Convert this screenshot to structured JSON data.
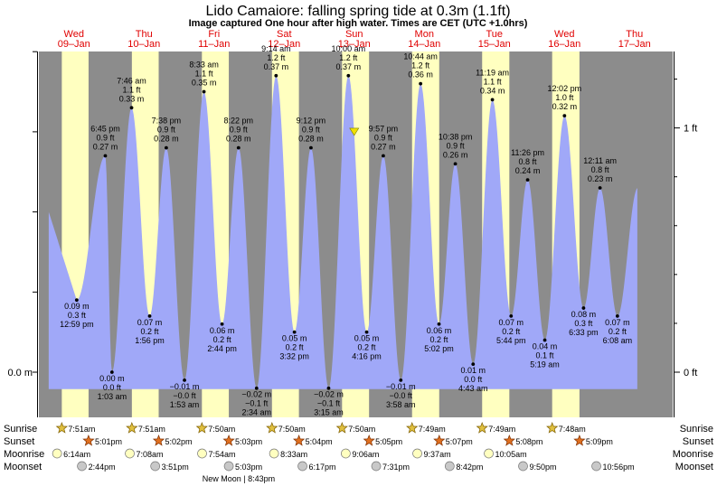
{
  "header": {
    "title": "Lido Camaiore: falling  spring tide at 0.3m (1.1ft)",
    "subtitle": "Image captured One hour after high water. Times are CET (UTC +1.0hrs)"
  },
  "days": [
    {
      "name": "Wed",
      "date": "09–Jan"
    },
    {
      "name": "Thu",
      "date": "10–Jan"
    },
    {
      "name": "Fri",
      "date": "11–Jan"
    },
    {
      "name": "Sat",
      "date": "12–Jan"
    },
    {
      "name": "Sun",
      "date": "13–Jan"
    },
    {
      "name": "Mon",
      "date": "14–Jan"
    },
    {
      "name": "Tue",
      "date": "15–Jan"
    },
    {
      "name": "Wed",
      "date": "16–Jan"
    },
    {
      "name": "Thu",
      "date": "17–Jan"
    }
  ],
  "axis_labels": {
    "left_zero": "0.0 m",
    "right_zero": "0 ft",
    "right_one": "1 ft"
  },
  "colors": {
    "night": "#8c8c8c",
    "day": "#ffffc0",
    "water": "#a0a8f8",
    "day_label": "#e00000",
    "now_marker": "#f0e000"
  },
  "chart_data": {
    "type": "area",
    "title": "Lido Camaiore: falling  spring tide at 0.3m (1.1ft)",
    "x_unit": "days",
    "y_unit": "m",
    "ylim": [
      -0.035,
      0.435
    ],
    "now": {
      "day": 4.5,
      "level_m": 0.3
    },
    "extremes": [
      {
        "day": 0.54,
        "m": "0.09 m",
        "ft": "0.3 ft",
        "time": "12:59 pm",
        "v": 0.09,
        "type": "low"
      },
      {
        "day": 0.948,
        "m": "0.27 m",
        "ft": "0.9 ft",
        "time": "6:45 pm",
        "v": 0.27,
        "type": "high"
      },
      {
        "day": 1.043,
        "m": "0.00 m",
        "ft": "0.0 ft",
        "time": "1:03 am",
        "v": 0.0,
        "type": "low"
      },
      {
        "day": 1.323,
        "m": "0.33 m",
        "ft": "1.1 ft",
        "time": "7:46 am",
        "v": 0.33,
        "type": "high"
      },
      {
        "day": 1.581,
        "m": "0.07 m",
        "ft": "0.2 ft",
        "time": "1:56 pm",
        "v": 0.07,
        "type": "low"
      },
      {
        "day": 1.818,
        "m": "0.28 m",
        "ft": "0.9 ft",
        "time": "7:38 pm",
        "v": 0.28,
        "type": "high"
      },
      {
        "day": 2.078,
        "m": "−0.01 m",
        "ft": "−0.0 ft",
        "time": "1:53 am",
        "v": -0.01,
        "type": "low"
      },
      {
        "day": 2.356,
        "m": "0.35 m",
        "ft": "1.1 ft",
        "time": "8:33 am",
        "v": 0.35,
        "type": "high"
      },
      {
        "day": 2.614,
        "m": "0.06 m",
        "ft": "0.2 ft",
        "time": "2:44 pm",
        "v": 0.06,
        "type": "low"
      },
      {
        "day": 2.849,
        "m": "0.28 m",
        "ft": "0.9 ft",
        "time": "8:22 pm",
        "v": 0.28,
        "type": "high"
      },
      {
        "day": 3.107,
        "m": "−0.02 m",
        "ft": "−0.1 ft",
        "time": "2:34 am",
        "v": -0.02,
        "type": "low"
      },
      {
        "day": 3.385,
        "m": "0.37 m",
        "ft": "1.2 ft",
        "time": "9:14 am",
        "v": 0.37,
        "type": "high"
      },
      {
        "day": 3.647,
        "m": "0.05 m",
        "ft": "0.2 ft",
        "time": "3:32 pm",
        "v": 0.05,
        "type": "low"
      },
      {
        "day": 3.883,
        "m": "0.28 m",
        "ft": "0.9 ft",
        "time": "9:12 pm",
        "v": 0.28,
        "type": "high"
      },
      {
        "day": 4.135,
        "m": "−0.02 m",
        "ft": "−0.1 ft",
        "time": "3:15 am",
        "v": -0.02,
        "type": "low"
      },
      {
        "day": 4.417,
        "m": "0.37 m",
        "ft": "1.2 ft",
        "time": "10:00 am",
        "v": 0.37,
        "type": "high"
      },
      {
        "day": 4.678,
        "m": "0.05 m",
        "ft": "0.2 ft",
        "time": "4:16 pm",
        "v": 0.05,
        "type": "low"
      },
      {
        "day": 4.915,
        "m": "0.27 m",
        "ft": "0.9 ft",
        "time": "9:57 pm",
        "v": 0.27,
        "type": "high"
      },
      {
        "day": 5.165,
        "m": "−0.01 m",
        "ft": "−0.0 ft",
        "time": "3:58 am",
        "v": -0.01,
        "type": "low"
      },
      {
        "day": 5.447,
        "m": "0.36 m",
        "ft": "1.2 ft",
        "time": "10:44 am",
        "v": 0.36,
        "type": "high"
      },
      {
        "day": 5.71,
        "m": "0.06 m",
        "ft": "0.2 ft",
        "time": "5:02 pm",
        "v": 0.06,
        "type": "low"
      },
      {
        "day": 5.943,
        "m": "0.26 m",
        "ft": "0.9 ft",
        "time": "10:38 pm",
        "v": 0.26,
        "type": "high"
      },
      {
        "day": 6.197,
        "m": "0.01 m",
        "ft": "0.0 ft",
        "time": "4:43 am",
        "v": 0.01,
        "type": "low"
      },
      {
        "day": 6.472,
        "m": "0.34 m",
        "ft": "1.1 ft",
        "time": "11:19 am",
        "v": 0.34,
        "type": "high"
      },
      {
        "day": 6.739,
        "m": "0.07 m",
        "ft": "0.2 ft",
        "time": "5:44 pm",
        "v": 0.07,
        "type": "low"
      },
      {
        "day": 6.975,
        "m": "0.24 m",
        "ft": "0.8 ft",
        "time": "11:26 pm",
        "v": 0.24,
        "type": "high"
      },
      {
        "day": 7.22,
        "m": "0.04 m",
        "ft": "0.1 ft",
        "time": "5:19 am",
        "v": 0.04,
        "type": "low"
      },
      {
        "day": 7.501,
        "m": "0.32 m",
        "ft": "1.0 ft",
        "time": "12:02 pm",
        "v": 0.32,
        "type": "high"
      },
      {
        "day": 7.773,
        "m": "0.08 m",
        "ft": "0.3 ft",
        "time": "6:33 pm",
        "v": 0.08,
        "type": "low"
      },
      {
        "day": 8.008,
        "m": "0.23 m",
        "ft": "0.8 ft",
        "time": "12:11 am",
        "v": 0.23,
        "type": "high"
      },
      {
        "day": 8.256,
        "m": "0.07 m",
        "ft": "0.2 ft",
        "time": "6:08 am",
        "v": 0.07,
        "type": "low"
      }
    ]
  },
  "astro": {
    "row_labels": {
      "sunrise": "Sunrise",
      "sunset": "Sunset",
      "moonrise": "Moonrise",
      "moonset": "Moonset"
    },
    "sunrise": [
      "7:51am",
      "7:51am",
      "7:50am",
      "7:50am",
      "7:50am",
      "7:49am",
      "7:49am",
      "7:48am"
    ],
    "sunset": [
      "5:01pm",
      "5:02pm",
      "5:03pm",
      "5:04pm",
      "5:05pm",
      "5:07pm",
      "5:08pm",
      "5:09pm"
    ],
    "moonrise": [
      "6:14am",
      "7:08am",
      "7:54am",
      "8:33am",
      "9:06am",
      "9:37am",
      "10:05am"
    ],
    "moonset": [
      "2:44pm",
      "3:51pm",
      "5:03pm",
      "6:17pm",
      "7:31pm",
      "8:42pm",
      "9:50pm",
      "10:56pm"
    ],
    "moon_phase": "New Moon | 8:43pm"
  }
}
